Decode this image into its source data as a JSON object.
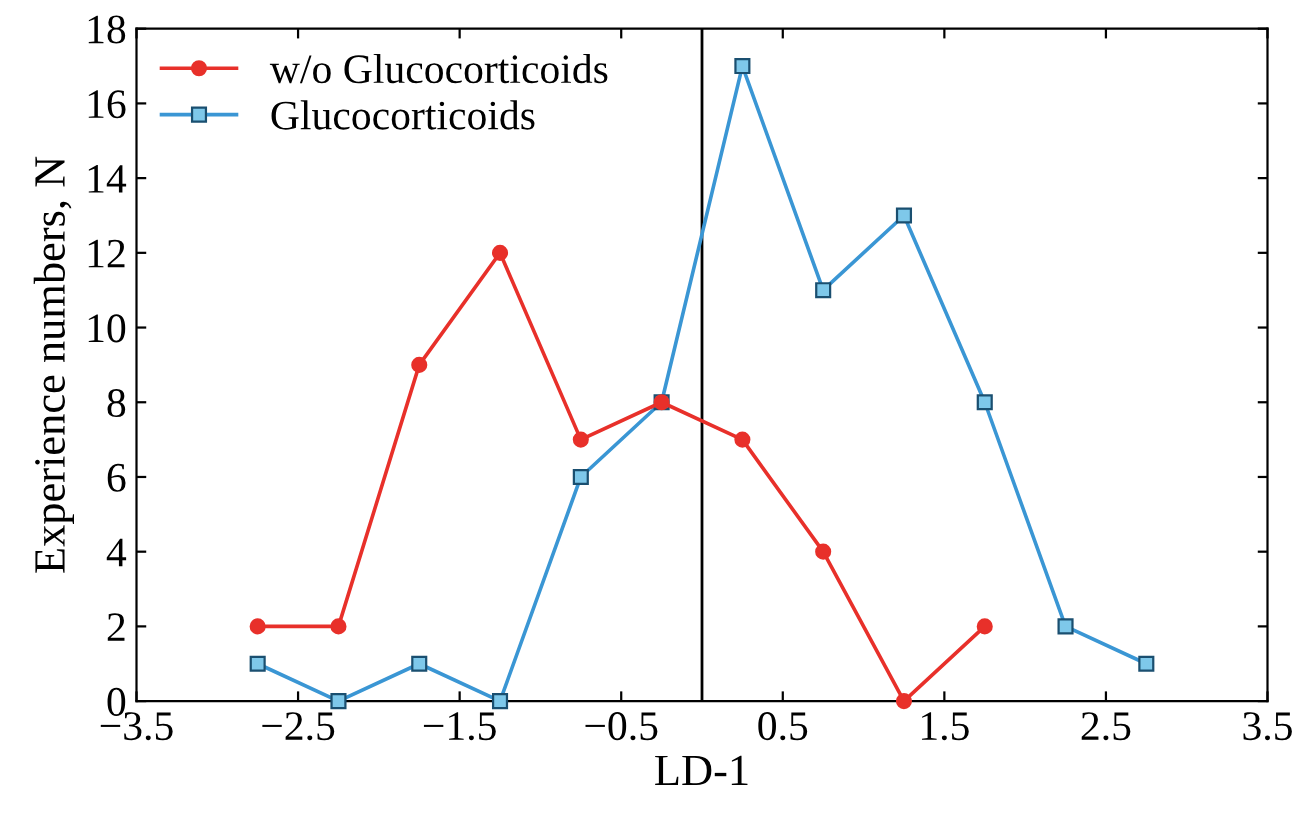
{
  "chart_data": {
    "type": "line",
    "xlabel": "LD-1",
    "ylabel": "Experience numbers, N",
    "series": [
      {
        "name": "w/o Glucocorticoids",
        "color": "#e8302a",
        "marker": "circle",
        "x": [
          -2.75,
          -2.25,
          -1.75,
          -1.25,
          -0.75,
          -0.25,
          0.25,
          0.75,
          1.25,
          1.75
        ],
        "values": [
          2,
          2,
          9,
          12,
          7,
          8,
          7,
          4,
          0,
          2
        ]
      },
      {
        "name": "Glucocorticoids",
        "color": "#3a96d4",
        "marker": "square",
        "x": [
          -2.75,
          -2.25,
          -1.75,
          -1.25,
          -0.75,
          -0.25,
          0.25,
          0.75,
          1.25,
          1.75,
          2.25,
          2.75
        ],
        "values": [
          1,
          0,
          1,
          0,
          6,
          8,
          17,
          11,
          13,
          8,
          2,
          1
        ]
      }
    ],
    "xlim": [
      -3.5,
      3.5
    ],
    "xticks": [
      {
        "value": -3.5,
        "label": "−3.5"
      },
      {
        "value": -2.5,
        "label": "−2.5"
      },
      {
        "value": -1.5,
        "label": "−1.5"
      },
      {
        "value": -0.5,
        "label": "−0.5"
      },
      0.5,
      1.5,
      2.5,
      3.5
    ],
    "ylim": [
      0,
      18
    ],
    "yticks": [
      0,
      2,
      4,
      6,
      8,
      10,
      12,
      14,
      16,
      18
    ],
    "ref_lines": [
      {
        "axis": "x",
        "value": 0,
        "color": "#000000"
      }
    ],
    "legend": "top left",
    "grid": false
  }
}
